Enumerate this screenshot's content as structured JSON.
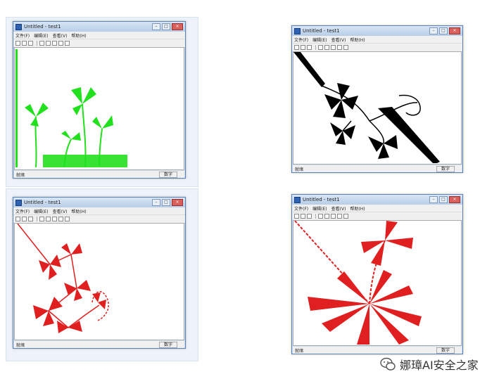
{
  "windows": [
    {
      "title": "Untitled - test1",
      "menu": [
        "文件(F)",
        "编辑(E)",
        "查看(V)",
        "帮助(H)"
      ],
      "status_left": "就绪",
      "status_right": "数字",
      "plant_color": "#22e01e"
    },
    {
      "title": "Untitled - test1",
      "menu": [
        "文件(F)",
        "编辑(E)",
        "查看(V)",
        "帮助(H)"
      ],
      "status_left": "就绪",
      "status_right": "数字",
      "plant_color": "#000000"
    },
    {
      "title": "Untitled - test1",
      "menu": [
        "文件(F)",
        "编辑(E)",
        "查看(V)",
        "帮助(H)"
      ],
      "status_left": "就绪",
      "status_right": "数字",
      "plant_color": "#e02020"
    },
    {
      "title": "Untitled - test1",
      "menu": [
        "文件(F)",
        "编辑(E)",
        "查看(V)",
        "帮助(H)"
      ],
      "status_left": "就绪",
      "status_right": "数字",
      "plant_color": "#e02020"
    }
  ],
  "window_controls": [
    "minimize",
    "maximize",
    "close"
  ],
  "toolbar_icons": [
    "new-icon",
    "open-icon",
    "save-icon",
    "cut-icon",
    "copy-icon",
    "paste-icon",
    "print-icon",
    "help-icon"
  ],
  "watermark": {
    "icon": "wechat-icon",
    "text": "娜璋AI安全之家"
  }
}
